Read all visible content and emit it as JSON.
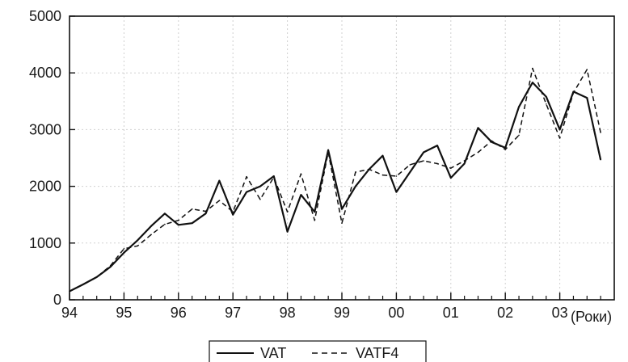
{
  "chart_data": {
    "type": "line",
    "xlabel": "(Роки)",
    "ylabel": "",
    "title": "",
    "ylim": [
      0,
      5000
    ],
    "xlim": [
      1994,
      2004
    ],
    "grid": true,
    "legend_position": "bottom-center",
    "x_tick_values": [
      1994,
      1995,
      1996,
      1997,
      1998,
      1999,
      2000,
      2001,
      2002,
      2003
    ],
    "x_tick_labels": [
      "94",
      "95",
      "96",
      "97",
      "98",
      "99",
      "00",
      "01",
      "02",
      "03"
    ],
    "y_ticks": [
      0,
      1000,
      2000,
      3000,
      4000,
      5000
    ],
    "y_tick_labels": [
      "0",
      "1000",
      "2000",
      "3000",
      "4000",
      "5000"
    ],
    "x": [
      1994.0,
      1994.25,
      1994.5,
      1994.75,
      1995.0,
      1995.25,
      1995.5,
      1995.75,
      1996.0,
      1996.25,
      1996.5,
      1996.75,
      1997.0,
      1997.25,
      1997.5,
      1997.75,
      1998.0,
      1998.25,
      1998.5,
      1998.75,
      1999.0,
      1999.25,
      1999.5,
      1999.75,
      2000.0,
      2000.25,
      2000.5,
      2000.75,
      2001.0,
      2001.25,
      2001.5,
      2001.75,
      2002.0,
      2002.25,
      2002.5,
      2002.75,
      2003.0,
      2003.25,
      2003.5,
      2003.75
    ],
    "series": [
      {
        "name": "VAT",
        "style": "solid",
        "values": [
          150,
          270,
          400,
          580,
          830,
          1050,
          1300,
          1520,
          1320,
          1350,
          1520,
          2100,
          1500,
          1900,
          2000,
          2180,
          1200,
          1850,
          1550,
          2640,
          1600,
          2000,
          2300,
          2540,
          1900,
          2250,
          2600,
          2720,
          2150,
          2400,
          3030,
          2780,
          2680,
          3400,
          3830,
          3580,
          3000,
          3670,
          3560,
          2470
        ]
      },
      {
        "name": "VATF4",
        "style": "dashed",
        "values": [
          150,
          270,
          400,
          600,
          900,
          950,
          1150,
          1330,
          1400,
          1600,
          1560,
          1750,
          1550,
          2170,
          1770,
          2160,
          1550,
          2220,
          1400,
          2600,
          1350,
          2250,
          2300,
          2200,
          2180,
          2380,
          2450,
          2400,
          2320,
          2450,
          2600,
          2800,
          2650,
          2900,
          4080,
          3450,
          2850,
          3650,
          4060,
          2950
        ]
      }
    ]
  }
}
